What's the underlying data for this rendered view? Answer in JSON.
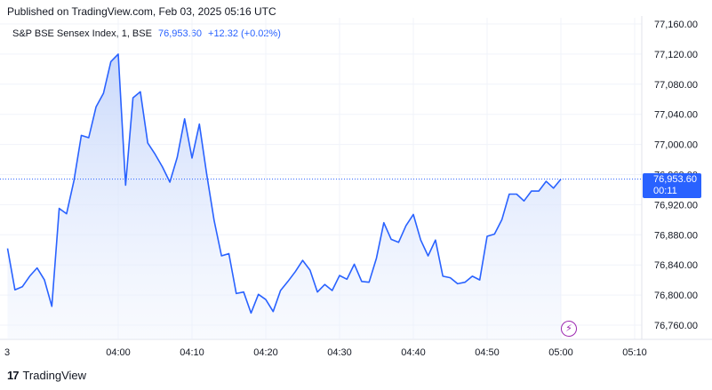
{
  "header": {
    "published": "Published on TradingView.com, Feb 03, 2025 05:16 UTC"
  },
  "legend": {
    "name": "S&P BSE Sensex Index, 1, BSE",
    "value": "76,953.60",
    "change": "+12.32 (+0.02%)"
  },
  "price_tag": {
    "price": "76,953.60",
    "countdown": "00:11"
  },
  "brand": {
    "logo": "17",
    "name": "TradingView"
  },
  "icons": {
    "event": "lightning-icon"
  },
  "colors": {
    "line": "#2962ff",
    "fill_top": "#c9d8fb",
    "grid": "#f0f3fa",
    "dotted": "#2962ff"
  },
  "chart_data": {
    "type": "area",
    "title": "S&P BSE Sensex Index, 1, BSE",
    "ylim": [
      76740,
      77170
    ],
    "y_ticks": [
      76760,
      76800,
      76840,
      76880,
      76920,
      76960,
      77000,
      77040,
      77080,
      77120,
      77160
    ],
    "y_tick_labels": [
      "76,760.00",
      "76,800.00",
      "76,840.00",
      "76,880.00",
      "76,920.00",
      "76,960.00",
      "77,000.00",
      "77,040.00",
      "77,080.00",
      "77,120.00",
      "77,160.00"
    ],
    "x_ticks": [
      "3",
      "04:00",
      "04:10",
      "04:20",
      "04:30",
      "04:40",
      "04:50",
      "05:00",
      "05:10"
    ],
    "x": [
      "03:45",
      "03:46",
      "03:47",
      "03:48",
      "03:49",
      "03:50",
      "03:51",
      "03:52",
      "03:53",
      "03:54",
      "03:55",
      "03:56",
      "03:57",
      "03:58",
      "03:59",
      "04:00",
      "04:01",
      "04:02",
      "04:03",
      "04:04",
      "04:05",
      "04:06",
      "04:07",
      "04:08",
      "04:09",
      "04:10",
      "04:11",
      "04:12",
      "04:13",
      "04:14",
      "04:15",
      "04:16",
      "04:17",
      "04:18",
      "04:19",
      "04:20",
      "04:21",
      "04:22",
      "04:23",
      "04:24",
      "04:25",
      "04:26",
      "04:27",
      "04:28",
      "04:29",
      "04:30",
      "04:31",
      "04:32",
      "04:33",
      "04:34",
      "04:35",
      "04:36",
      "04:37",
      "04:38",
      "04:39",
      "04:40",
      "04:41",
      "04:42",
      "04:43",
      "04:44",
      "04:45",
      "04:46",
      "04:47",
      "04:48",
      "04:49",
      "04:50",
      "04:51",
      "04:52",
      "04:53",
      "04:54",
      "04:55",
      "04:56",
      "04:57",
      "04:58",
      "04:59",
      "05:00"
    ],
    "values": [
      76862,
      76807,
      76811,
      76825,
      76836,
      76820,
      76785,
      76915,
      76908,
      76952,
      77012,
      77009,
      77050,
      77068,
      77110,
      77120,
      76946,
      77062,
      77070,
      77002,
      76987,
      76970,
      76950,
      76983,
      77034,
      76982,
      77027,
      76960,
      76899,
      76852,
      76855,
      76802,
      76804,
      76776,
      76801,
      76794,
      76778,
      76806,
      76818,
      76831,
      76846,
      76833,
      76804,
      76814,
      76806,
      76826,
      76821,
      76841,
      76818,
      76817,
      76849,
      76896,
      76874,
      76870,
      76892,
      76907,
      76873,
      76852,
      76873,
      76825,
      76823,
      76815,
      76817,
      76825,
      76820,
      76878,
      76881,
      76900,
      76934,
      76934,
      76925,
      76938,
      76938,
      76951,
      76942,
      76954
    ]
  }
}
